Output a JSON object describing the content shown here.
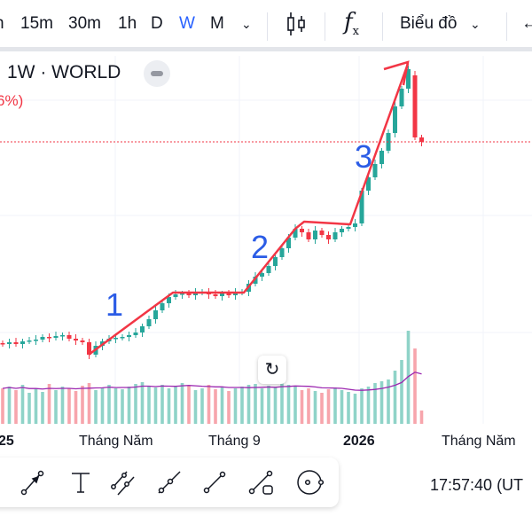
{
  "toolbar": {
    "timeframes": [
      {
        "label": "h",
        "active": false
      },
      {
        "label": "15m",
        "active": false
      },
      {
        "label": "30m",
        "active": false
      },
      {
        "label": "1h",
        "active": false
      },
      {
        "label": "D",
        "active": false
      },
      {
        "label": "W",
        "active": true
      },
      {
        "label": "M",
        "active": false
      }
    ],
    "more_icon": "chevron-down-icon",
    "chart_type_icon": "candles-icon",
    "indicators_icon": "fx-icon",
    "layout_label": "Biểu đồ",
    "back_icon": "arrow-left-icon",
    "active_color": "#2962ff"
  },
  "legend": {
    "title": "1W · WORLD",
    "change": "6%)"
  },
  "wave_labels": [
    "1",
    "2",
    "3"
  ],
  "x_axis": {
    "labels": [
      "25",
      "Tháng Năm",
      "Tháng 9",
      "2026",
      "Tháng Năm"
    ],
    "bold": [
      true,
      false,
      false,
      true,
      false
    ]
  },
  "drawing_tools": [
    "arrow-tool-icon",
    "text-tool-icon",
    "parallel-channel-icon",
    "trend-line-extended-icon",
    "trend-line-icon",
    "trend-line-box-icon",
    "circle-tool-icon"
  ],
  "clock": "17:57:40 (UT",
  "colors": {
    "up": "#26a69a",
    "down": "#f23645",
    "vol_up": "#8fd3c8",
    "vol_down": "#f7a5ac",
    "ma": "#9c27b0",
    "annotation": "#f23645",
    "wave": "#2b5ce6"
  },
  "chart_data": {
    "type": "candlestick",
    "closes": [
      212,
      214,
      212,
      215,
      216,
      217,
      220,
      219,
      221,
      222,
      218,
      216,
      214,
      200,
      210,
      215,
      218,
      219,
      220,
      222,
      225,
      232,
      240,
      250,
      258,
      265,
      268,
      269,
      267,
      270,
      271,
      268,
      266,
      269,
      267,
      270,
      271,
      280,
      288,
      292,
      300,
      310,
      320,
      332,
      342,
      338,
      330,
      340,
      335,
      330,
      338,
      342,
      344,
      348,
      385,
      400,
      415,
      430,
      450,
      480,
      500,
      522,
      445,
      440
    ],
    "last_open": 515,
    "volumes": [
      40,
      42,
      38,
      44,
      35,
      40,
      36,
      45,
      38,
      42,
      40,
      37,
      43,
      46,
      38,
      41,
      44,
      40,
      39,
      42,
      45,
      47,
      43,
      41,
      44,
      40,
      42,
      46,
      43,
      38,
      40,
      44,
      39,
      41,
      37,
      40,
      42,
      44,
      45,
      40,
      43,
      41,
      46,
      44,
      42,
      38,
      40,
      37,
      35,
      39,
      41,
      38,
      36,
      34,
      40,
      42,
      46,
      48,
      50,
      60,
      72,
      105,
      85,
      15
    ],
    "price_line": 440
  }
}
